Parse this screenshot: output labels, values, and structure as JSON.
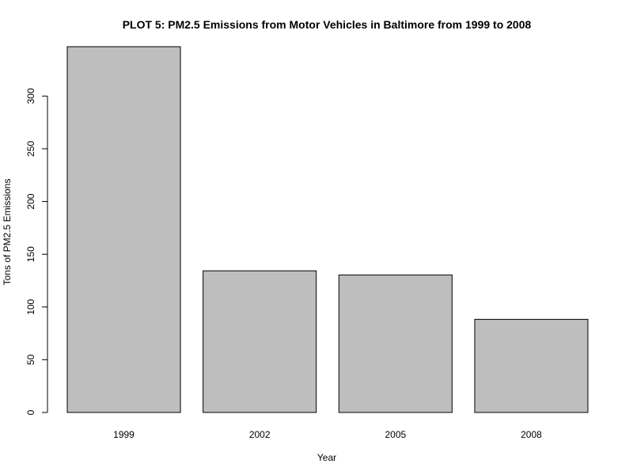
{
  "chart_data": {
    "type": "bar",
    "title": "PLOT 5: PM2.5 Emissions from Motor Vehicles in Baltimore from 1999 to 2008",
    "xlabel": "Year",
    "ylabel": "Tons of PM2.5 Emissions",
    "categories": [
      "1999",
      "2002",
      "2005",
      "2008"
    ],
    "values": [
      346.8,
      134.3,
      130.4,
      88.3
    ],
    "ylim": [
      0,
      346.8
    ],
    "yticks": [
      0,
      50,
      100,
      150,
      200,
      250,
      300
    ],
    "ytick_labels": [
      "0",
      "50",
      "100",
      "150",
      "200",
      "250",
      "300"
    ],
    "bar_color": "#bebebe",
    "bar_border_color": "#000000",
    "grid": false,
    "legend": "none"
  }
}
